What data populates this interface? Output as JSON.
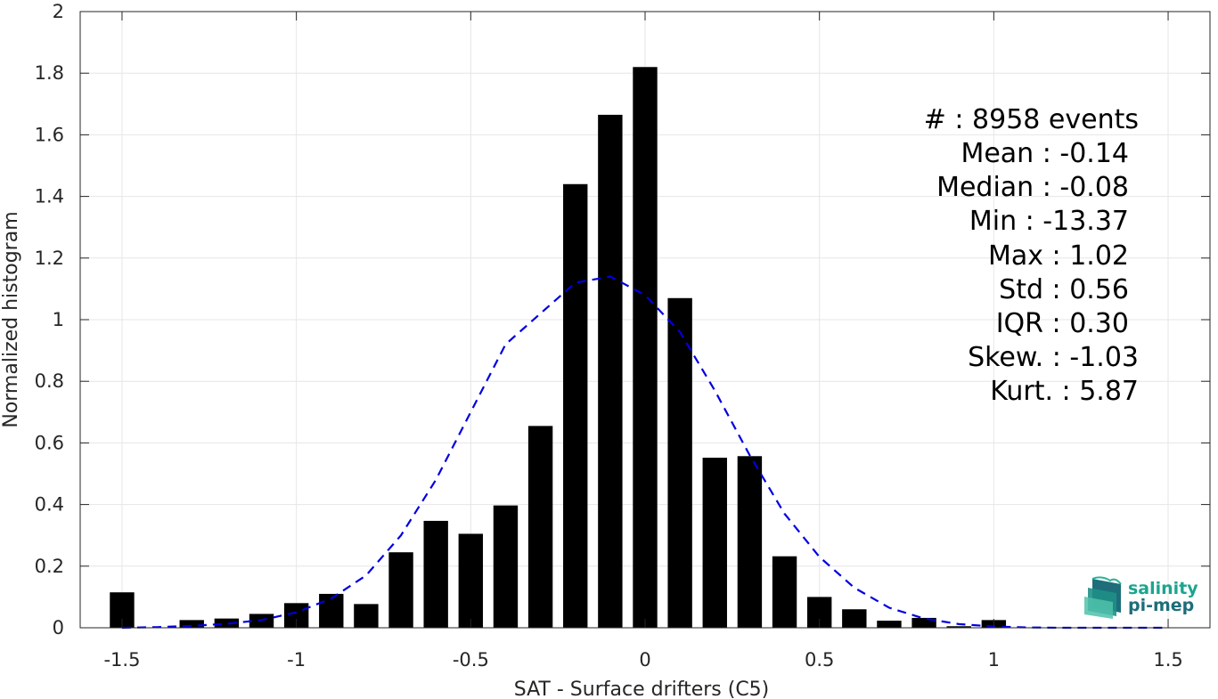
{
  "chart_data": {
    "type": "bar",
    "xlabel": "SAT - Surface drifters (C5)",
    "ylabel": "Normalized histogram",
    "xlim": [
      -1.62,
      1.62
    ],
    "ylim": [
      0,
      2
    ],
    "grid": true,
    "x_ticks": [
      -1.5,
      -1,
      -0.5,
      0,
      0.5,
      1,
      1.5
    ],
    "x_tick_labels": [
      "-1.5",
      "-1",
      "-0.5",
      "0",
      "0.5",
      "1",
      "1.5"
    ],
    "y_ticks": [
      0,
      0.2,
      0.4,
      0.6,
      0.8,
      1,
      1.2,
      1.4,
      1.6,
      1.8,
      2
    ],
    "y_tick_labels": [
      "0",
      "0.2",
      "0.4",
      "0.6",
      "0.8",
      "1",
      "1.2",
      "1.4",
      "1.6",
      "1.8",
      "2"
    ],
    "bar_width": 0.07,
    "bars": {
      "x": [
        -1.5,
        -1.4,
        -1.3,
        -1.2,
        -1.1,
        -1.0,
        -0.9,
        -0.8,
        -0.7,
        -0.6,
        -0.5,
        -0.4,
        -0.3,
        -0.2,
        -0.1,
        0.0,
        0.1,
        0.2,
        0.3,
        0.4,
        0.5,
        0.6,
        0.7,
        0.8,
        0.9,
        1.0
      ],
      "values": [
        0.115,
        0.0,
        0.025,
        0.03,
        0.045,
        0.08,
        0.11,
        0.077,
        0.245,
        0.347,
        0.305,
        0.397,
        0.655,
        1.44,
        1.665,
        1.82,
        1.07,
        0.552,
        0.557,
        0.232,
        0.1,
        0.06,
        0.023,
        0.032,
        0.005,
        0.025
      ],
      "color": "#000000"
    },
    "fit_curve": {
      "style": "dashed",
      "color": "#0000e0",
      "x": [
        -1.5,
        -1.4,
        -1.3,
        -1.2,
        -1.1,
        -1.0,
        -0.9,
        -0.8,
        -0.7,
        -0.6,
        -0.5,
        -0.4,
        -0.3,
        -0.2,
        -0.1,
        0.0,
        0.1,
        0.2,
        0.3,
        0.4,
        0.5,
        0.6,
        0.7,
        0.8,
        0.9,
        1.0,
        1.1,
        1.2,
        1.3,
        1.4,
        1.5
      ],
      "y": [
        0.0,
        0.002,
        0.006,
        0.013,
        0.025,
        0.05,
        0.095,
        0.17,
        0.3,
        0.48,
        0.7,
        0.92,
        1.02,
        1.12,
        1.14,
        1.08,
        0.96,
        0.77,
        0.56,
        0.37,
        0.23,
        0.13,
        0.065,
        0.03,
        0.012,
        0.004,
        0.001,
        0.0,
        0.0,
        0.0,
        0.0
      ]
    },
    "stats": [
      "#  : 8958 events",
      "Mean : -0.14",
      "Median : -0.08",
      "Min : -13.37",
      "Max : 1.02",
      "Std : 0.56",
      "IQR : 0.30",
      "Skew. : -1.03",
      "Kurt. : 5.87"
    ]
  },
  "logo": {
    "line1": "salinity",
    "line2": "pi-mep",
    "color_primary": "#1aa58e",
    "color_dark": "#1d6e7a"
  }
}
